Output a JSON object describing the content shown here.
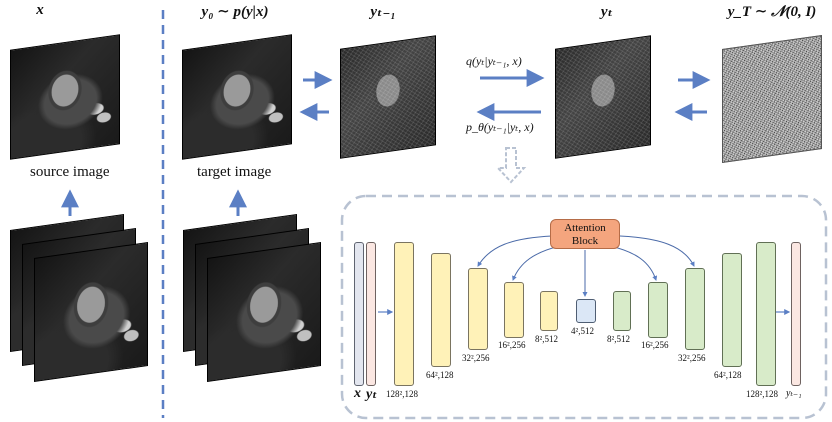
{
  "headers": {
    "x": "x",
    "y0": "y₀ ∼ p(y|x)",
    "yt_minus_1": "yₜ₋₁",
    "yt": "yₜ",
    "yT": "y_T ∼ 𝒩(0, I)"
  },
  "captions": {
    "source": "source image",
    "target": "target image"
  },
  "transitions": {
    "forward": "q(yₜ|yₜ₋₁, x)",
    "reverse": "p_θ(yₜ₋₁|yₜ, x)"
  },
  "unet": {
    "attention_label": "Attention Block",
    "input_x": "x",
    "input_y": "yₜ",
    "output": "yₜ₋₁",
    "dims": {
      "d128a": "128²,128",
      "d64a": "64²,128",
      "d32a": "32²,256",
      "d16a": "16²,256",
      "d8a": "8²,512",
      "d4": "4²,512",
      "d8b": "8²,512",
      "d16b": "16²,256",
      "d32b": "32²,256",
      "d64b": "64²,128",
      "d128b": "128²,128"
    }
  },
  "colors": {
    "arrow": "#5b7fc4",
    "divider": "#5b7fc4",
    "encoder": "#fff2b8",
    "decoder": "#d8ebc9",
    "bottleneck": "#dbe7f6",
    "attention": "#f4a57e",
    "panel_border": "#b8c2d2"
  }
}
